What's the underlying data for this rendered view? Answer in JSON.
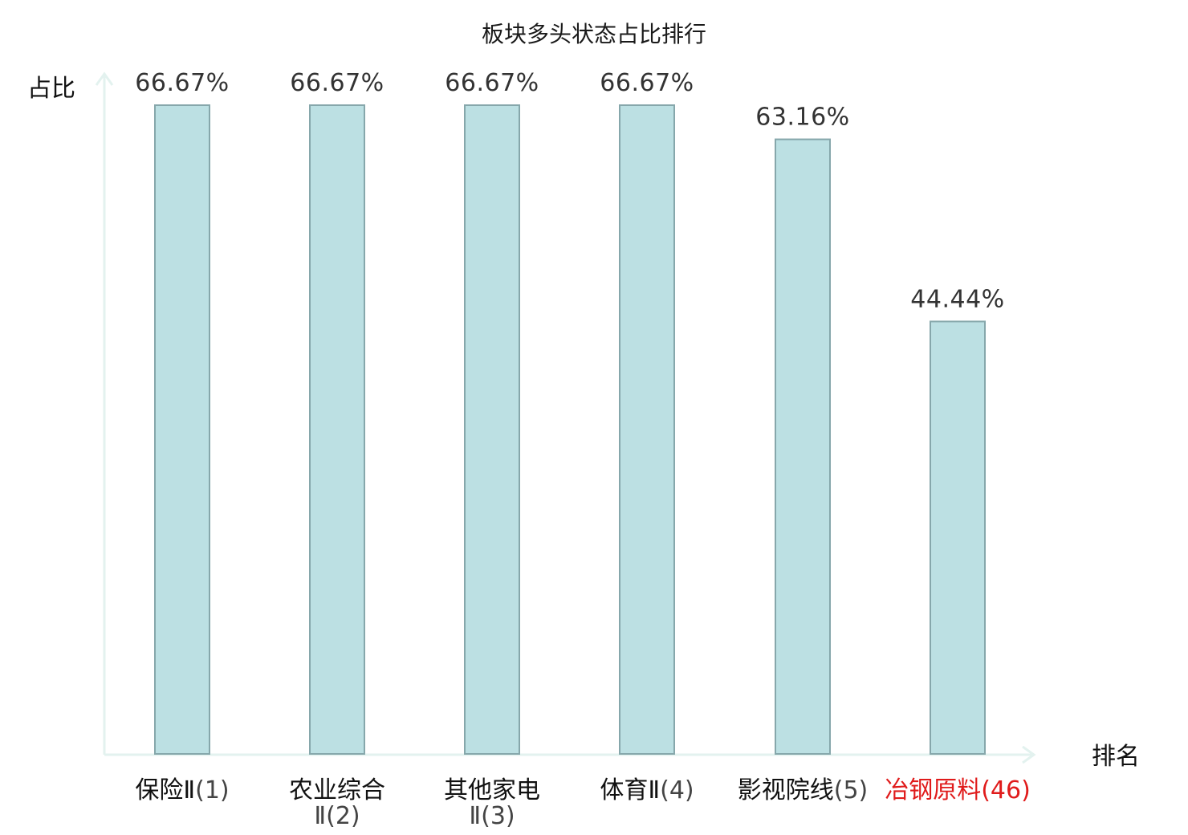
{
  "chart_data": {
    "type": "bar",
    "title": "板块多头状态占比排行",
    "ylabel": "占比",
    "xlabel": "排名",
    "ylim": [
      0,
      70
    ],
    "grid": false,
    "categories": [
      {
        "name": "保险Ⅱ",
        "rank": "(1)"
      },
      {
        "name": "农业综合Ⅱ",
        "rank": "(2)"
      },
      {
        "name": "其他家电Ⅱ",
        "rank": "(3)"
      },
      {
        "name": "体育Ⅱ",
        "rank": "(4)"
      },
      {
        "name": "影视院线",
        "rank": "(5)"
      },
      {
        "name": "冶钢原料",
        "rank": "(46)"
      }
    ],
    "values": [
      66.67,
      66.67,
      66.67,
      66.67,
      63.16,
      44.44
    ],
    "value_labels": [
      "66.67%",
      "66.67%",
      "66.67%",
      "66.67%",
      "63.16%",
      "44.44%"
    ],
    "highlight_index": 5
  },
  "colors": {
    "bar_fill": "#bce0e3",
    "bar_stroke": "#86a7ab",
    "axis": "#e3f2ef",
    "highlight_text": "#e01b1b"
  }
}
